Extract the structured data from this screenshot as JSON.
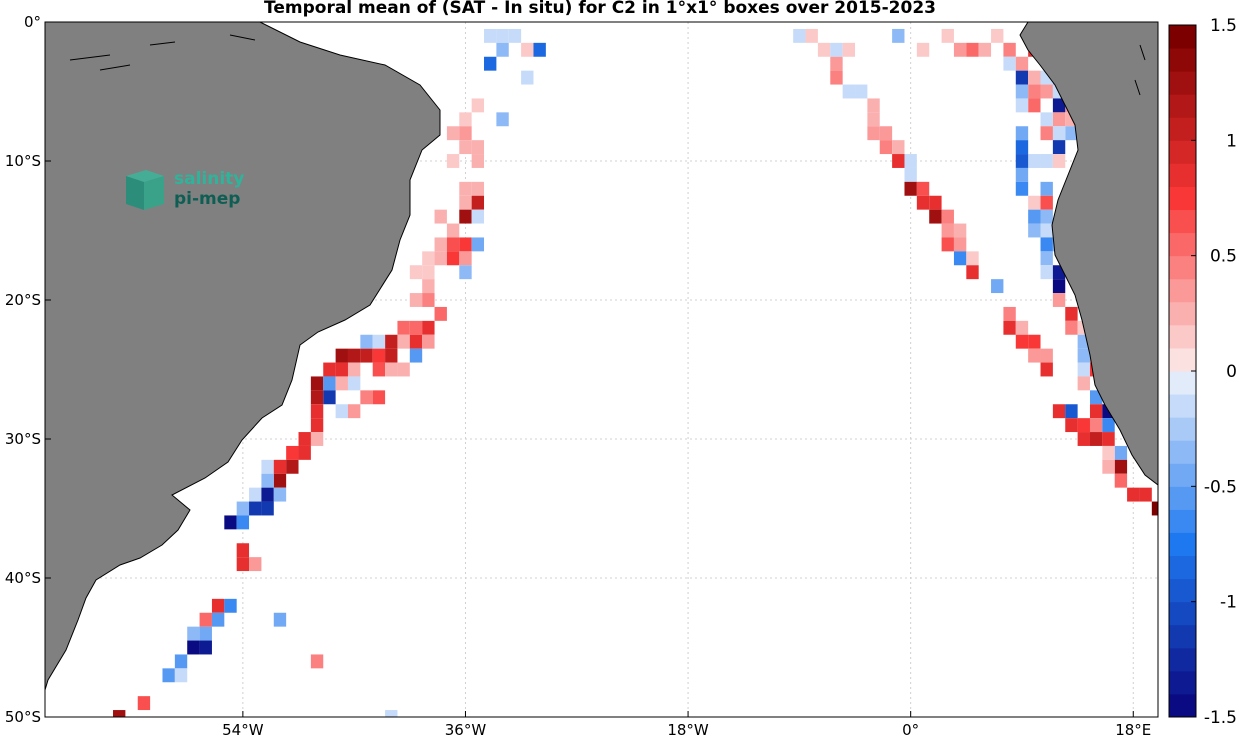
{
  "chart_data": {
    "type": "heatmap",
    "title": "Temporal mean of (SAT - In situ) for C2 in 1°x1° boxes over 2015-2023",
    "xlabel": "",
    "ylabel": "",
    "xlim_deg_lon": [
      -70,
      20
    ],
    "ylim_deg_lat": [
      -50,
      0
    ],
    "x_ticks": [
      {
        "value": -54,
        "label": "54°W"
      },
      {
        "value": -36,
        "label": "36°W"
      },
      {
        "value": -18,
        "label": "18°W"
      },
      {
        "value": 0,
        "label": "0°"
      },
      {
        "value": 18,
        "label": "18°E"
      }
    ],
    "y_ticks": [
      {
        "value": 0,
        "label": "0°"
      },
      {
        "value": -10,
        "label": "10°S"
      },
      {
        "value": -20,
        "label": "20°S"
      },
      {
        "value": -30,
        "label": "30°S"
      },
      {
        "value": -40,
        "label": "40°S"
      },
      {
        "value": -50,
        "label": "50°S"
      }
    ],
    "grid": true,
    "land_color": "#808080",
    "colorbar": {
      "range": [
        -1.5,
        1.5
      ],
      "n_levels": 30,
      "ticks": [
        {
          "value": 1.5,
          "label": "1.5"
        },
        {
          "value": 1,
          "label": "1"
        },
        {
          "value": 0.5,
          "label": "0.5"
        },
        {
          "value": 0,
          "label": "0"
        },
        {
          "value": -0.5,
          "label": "-0.5"
        },
        {
          "value": -1,
          "label": "-1"
        },
        {
          "value": -1.5,
          "label": "-1.5"
        }
      ],
      "colormap": "blue-white-red"
    },
    "cells": [
      [
        -32,
        -1,
        -0.2
      ],
      [
        -33,
        -1,
        -0.1
      ],
      [
        -34,
        -1,
        -0.1
      ],
      [
        -33,
        -2,
        -0.3
      ],
      [
        -31,
        -2,
        0.1
      ],
      [
        -30,
        -2,
        -0.8
      ],
      [
        -34,
        -3,
        -0.8
      ],
      [
        -31,
        -4,
        -0.1
      ],
      [
        -35,
        -6,
        0.1
      ],
      [
        -36,
        -7,
        0.1
      ],
      [
        -37,
        -8,
        0.2
      ],
      [
        -36,
        -8,
        0.3
      ],
      [
        -33,
        -7,
        -0.3
      ],
      [
        -36,
        -9,
        0.2
      ],
      [
        -35,
        -9,
        0.2
      ],
      [
        -37,
        -10,
        0.1
      ],
      [
        -35,
        -10,
        0.2
      ],
      [
        -36,
        -12,
        0.2
      ],
      [
        -35,
        -12,
        0.2
      ],
      [
        -36,
        -13,
        0.2
      ],
      [
        -35,
        -13,
        1.0
      ],
      [
        -38,
        -14,
        0.2
      ],
      [
        -36,
        -14,
        1.3
      ],
      [
        -37,
        -15,
        0.2
      ],
      [
        -35,
        -14,
        -0.1
      ],
      [
        -38,
        -16,
        0.2
      ],
      [
        -37,
        -16,
        0.6
      ],
      [
        -36,
        -16,
        0.7
      ],
      [
        -35,
        -16,
        -0.5
      ],
      [
        -39,
        -17,
        0.1
      ],
      [
        -38,
        -17,
        0.2
      ],
      [
        -37,
        -17,
        0.7
      ],
      [
        -36,
        -17,
        0.3
      ],
      [
        -36,
        -18,
        -0.3
      ],
      [
        -40,
        -18,
        0.1
      ],
      [
        -39,
        -18,
        0.1
      ],
      [
        -39,
        -19,
        0.2
      ],
      [
        -40,
        -20,
        0.2
      ],
      [
        -39,
        -20,
        0.4
      ],
      [
        -38,
        -21,
        0.5
      ],
      [
        -41,
        -22,
        0.5
      ],
      [
        -40,
        -22,
        0.5
      ],
      [
        -39,
        -22,
        0.8
      ],
      [
        -42,
        -23,
        1.0
      ],
      [
        -41,
        -23,
        0.2
      ],
      [
        -40,
        -23,
        0.8
      ],
      [
        -39,
        -23,
        0.3
      ],
      [
        -40,
        -24,
        -0.6
      ],
      [
        -44,
        -23,
        -0.3
      ],
      [
        -43,
        -23,
        -0.1
      ],
      [
        -45,
        -24,
        1.1
      ],
      [
        -44,
        -24,
        1.0
      ],
      [
        -43,
        -24,
        0.7
      ],
      [
        -42,
        -24,
        1.0
      ],
      [
        -46,
        -24,
        1.2
      ],
      [
        -47,
        -25,
        0.9
      ],
      [
        -46,
        -25,
        0.8
      ],
      [
        -45,
        -25,
        0.2
      ],
      [
        -43,
        -25,
        0.6
      ],
      [
        -42,
        -25,
        0.2
      ],
      [
        -41,
        -25,
        0.2
      ],
      [
        -48,
        -26,
        1.2
      ],
      [
        -47,
        -26,
        -0.6
      ],
      [
        -46,
        -26,
        0.2
      ],
      [
        -45,
        -26,
        -0.1
      ],
      [
        -44,
        -27,
        0.4
      ],
      [
        -43,
        -27,
        0.6
      ],
      [
        -47,
        -27,
        -1.2
      ],
      [
        -48,
        -27,
        1.1
      ],
      [
        -48,
        -28,
        0.9
      ],
      [
        -48,
        -29,
        0.8
      ],
      [
        -46,
        -28,
        -0.2
      ],
      [
        -45,
        -28,
        0.3
      ],
      [
        -48,
        -30,
        0.2
      ],
      [
        -49,
        -30,
        0.9
      ],
      [
        -50,
        -31,
        0.7
      ],
      [
        -49,
        -31,
        0.9
      ],
      [
        -52,
        -32,
        -0.2
      ],
      [
        -51,
        -32,
        0.9
      ],
      [
        -50,
        -32,
        1.1
      ],
      [
        -51,
        -33,
        1.2
      ],
      [
        -52,
        -33,
        -0.3
      ],
      [
        -53,
        -34,
        -0.2
      ],
      [
        -52,
        -34,
        -1.3
      ],
      [
        -51,
        -34,
        -0.4
      ],
      [
        -54,
        -35,
        -0.3
      ],
      [
        -53,
        -35,
        -1.1
      ],
      [
        -52,
        -35,
        -1.1
      ],
      [
        -55,
        -36,
        -1.5
      ],
      [
        -54,
        -36,
        -0.7
      ],
      [
        -54,
        -38,
        0.9
      ],
      [
        -54,
        -39,
        0.9
      ],
      [
        -53,
        -39,
        0.3
      ],
      [
        -56,
        -42,
        0.8
      ],
      [
        -55,
        -42,
        -0.7
      ],
      [
        -57,
        -43,
        0.5
      ],
      [
        -56,
        -43,
        -0.6
      ],
      [
        -51,
        -43,
        -0.5
      ],
      [
        -57,
        -44,
        -0.5
      ],
      [
        -58,
        -44,
        -0.3
      ],
      [
        -57,
        -45,
        -1.4
      ],
      [
        -58,
        -45,
        -1.5
      ],
      [
        -59,
        -46,
        -0.6
      ],
      [
        -48,
        -46,
        0.4
      ],
      [
        -60,
        -47,
        -0.6
      ],
      [
        -59,
        -47,
        -0.2
      ],
      [
        -62,
        -49,
        0.6
      ],
      [
        -64,
        -50,
        1.3
      ],
      [
        -42,
        -50,
        -0.1
      ],
      [
        -9,
        -1,
        -0.1
      ],
      [
        -8,
        -1,
        0.1
      ],
      [
        -7,
        -2,
        0.1
      ],
      [
        -6,
        -2,
        -0.1
      ],
      [
        -5,
        -2,
        0.1
      ],
      [
        -6,
        -3,
        0.3
      ],
      [
        -6,
        -4,
        0.4
      ],
      [
        -5,
        -5,
        -0.1
      ],
      [
        -4,
        -5,
        -0.1
      ],
      [
        -3,
        -6,
        0.2
      ],
      [
        -3,
        -7,
        0.2
      ],
      [
        -3,
        -8,
        0.3
      ],
      [
        -2,
        -8,
        0.3
      ],
      [
        -2,
        -9,
        0.4
      ],
      [
        -1,
        -9,
        0.2
      ],
      [
        -1,
        -10,
        0.8
      ],
      [
        0,
        -10,
        -0.2
      ],
      [
        0,
        -11,
        -0.1
      ],
      [
        0,
        -12,
        1.3
      ],
      [
        1,
        -12,
        0.6
      ],
      [
        1,
        -13,
        0.9
      ],
      [
        2,
        -13,
        0.9
      ],
      [
        2,
        -14,
        1.2
      ],
      [
        3,
        -14,
        0.4
      ],
      [
        3,
        -15,
        0.3
      ],
      [
        4,
        -15,
        0.2
      ],
      [
        3,
        -16,
        0.6
      ],
      [
        4,
        -16,
        0.3
      ],
      [
        4,
        -17,
        -0.7
      ],
      [
        5,
        -17,
        0.1
      ],
      [
        5,
        -18,
        0.9
      ],
      [
        7,
        -19,
        -0.5
      ],
      [
        8,
        -21,
        0.4
      ],
      [
        8,
        -22,
        0.9
      ],
      [
        9,
        -22,
        0.2
      ],
      [
        9,
        -23,
        0.7
      ],
      [
        10,
        -23,
        0.7
      ],
      [
        10,
        -24,
        0.3
      ],
      [
        11,
        -24,
        0.3
      ],
      [
        11,
        -25,
        0.9
      ],
      [
        -1,
        -1,
        -0.3
      ],
      [
        1,
        -2,
        0.1
      ],
      [
        3,
        -1,
        0.1
      ],
      [
        4,
        -2,
        0.3
      ],
      [
        5,
        -2,
        0.5
      ],
      [
        6,
        -2,
        0.2
      ],
      [
        7,
        -1,
        0.1
      ],
      [
        8,
        -2,
        0.4
      ],
      [
        8,
        -3,
        -0.1
      ],
      [
        9,
        -3,
        0.3
      ],
      [
        10,
        -2,
        0.8
      ],
      [
        9,
        -4,
        -1.2
      ],
      [
        10,
        -4,
        0.2
      ],
      [
        10,
        -5,
        0.4
      ],
      [
        11,
        -4,
        -0.2
      ],
      [
        12,
        -4,
        -0.5
      ],
      [
        9,
        -5,
        -0.4
      ],
      [
        10,
        -6,
        0.5
      ],
      [
        9,
        -6,
        -0.2
      ],
      [
        11,
        -5,
        0.3
      ],
      [
        12,
        -5,
        -0.1
      ],
      [
        13,
        -5,
        -1.5
      ],
      [
        13,
        -6,
        0.3
      ],
      [
        12,
        -6,
        -1.3
      ],
      [
        12,
        -7,
        0.3
      ],
      [
        11,
        -7,
        -0.1
      ],
      [
        13,
        -7,
        0.2
      ],
      [
        13,
        -8,
        -0.3
      ],
      [
        12,
        -8,
        -0.1
      ],
      [
        11,
        -8,
        0.4
      ],
      [
        12,
        -9,
        -1.1
      ],
      [
        9,
        -8,
        -0.5
      ],
      [
        9,
        -9,
        -0.8
      ],
      [
        10,
        -10,
        -0.1
      ],
      [
        11,
        -10,
        -0.1
      ],
      [
        12,
        -10,
        0.1
      ],
      [
        9,
        -10,
        -1.0
      ],
      [
        9,
        -11,
        -0.5
      ],
      [
        9,
        -12,
        -0.7
      ],
      [
        11,
        -12,
        -0.5
      ],
      [
        11,
        -13,
        0.6
      ],
      [
        10,
        -13,
        0.1
      ],
      [
        10,
        -14,
        -0.6
      ],
      [
        11,
        -14,
        -0.3
      ],
      [
        10,
        -15,
        -0.4
      ],
      [
        11,
        -15,
        -0.2
      ],
      [
        12,
        -15,
        0.2
      ],
      [
        11,
        -16,
        -0.7
      ],
      [
        12,
        -16,
        -0.3
      ],
      [
        11,
        -17,
        -0.4
      ],
      [
        11,
        -18,
        -0.2
      ],
      [
        12,
        -18,
        -1.4
      ],
      [
        12,
        -19,
        -1.5
      ],
      [
        12,
        -20,
        0.3
      ],
      [
        13,
        -21,
        0.9
      ],
      [
        13,
        -22,
        0.4
      ],
      [
        14,
        -22,
        0.1
      ],
      [
        14,
        -23,
        -0.3
      ],
      [
        14,
        -24,
        -0.4
      ],
      [
        15,
        -24,
        0.3
      ],
      [
        14,
        -25,
        -0.1
      ],
      [
        15,
        -25,
        0.7
      ],
      [
        14,
        -26,
        0.2
      ],
      [
        15,
        -27,
        -0.6
      ],
      [
        12,
        -28,
        0.9
      ],
      [
        13,
        -28,
        -0.9
      ],
      [
        15,
        -28,
        0.8
      ],
      [
        16,
        -28,
        -1.5
      ],
      [
        13,
        -29,
        0.9
      ],
      [
        14,
        -29,
        0.7
      ],
      [
        15,
        -29,
        0.4
      ],
      [
        16,
        -29,
        -0.7
      ],
      [
        14,
        -30,
        0.8
      ],
      [
        15,
        -30,
        1.0
      ],
      [
        16,
        -30,
        0.8
      ],
      [
        17,
        -31,
        -0.5
      ],
      [
        16,
        -31,
        0.1
      ],
      [
        17,
        -32,
        1.3
      ],
      [
        16,
        -32,
        0.2
      ],
      [
        17,
        -33,
        0.5
      ],
      [
        18,
        -34,
        0.9
      ],
      [
        19,
        -34,
        0.8
      ],
      [
        20,
        -35,
        1.4
      ]
    ]
  },
  "watermark": {
    "line1": "salinity",
    "line2": "pi-mep"
  }
}
